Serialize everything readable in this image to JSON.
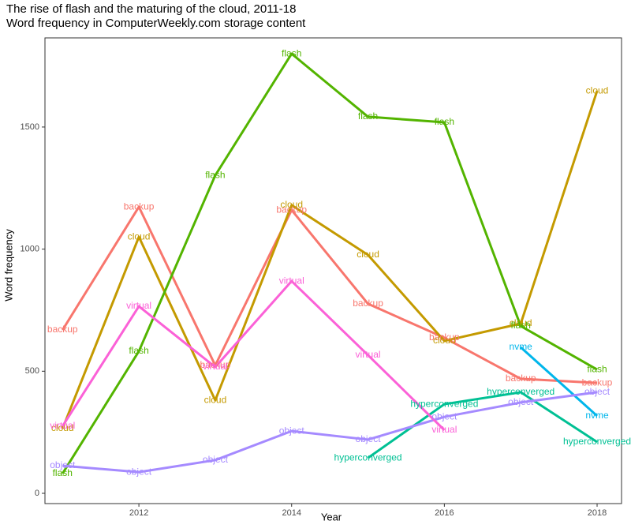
{
  "chart_data": {
    "type": "line",
    "title": "The rise of flash and the maturing of the cloud, 2011-18",
    "subtitle": "Word frequency in ComputerWeekly.com storage content",
    "x_label": "Year",
    "y_label": "Word frequency",
    "x": [
      2011,
      2012,
      2013,
      2014,
      2015,
      2016,
      2017,
      2018
    ],
    "series": [
      {
        "name": "backup",
        "color": "#F8766D",
        "values": [
          669,
          1173,
          524,
          1160,
          776,
          637,
          469,
          452
        ]
      },
      {
        "name": "cloud",
        "color": "#C49A00",
        "values": [
          265,
          1050,
          381,
          1180,
          976,
          624,
          695,
          1648
        ]
      },
      {
        "name": "flash",
        "color": "#53B400",
        "values": [
          81,
          582,
          1302,
          1800,
          1542,
          1519,
          685,
          507
        ]
      },
      {
        "name": "hyperconverged",
        "color": "#00C094",
        "values": [
          null,
          null,
          null,
          null,
          145,
          365,
          414,
          210
        ]
      },
      {
        "name": "nvme",
        "color": "#00B6EB",
        "values": [
          null,
          null,
          null,
          null,
          null,
          null,
          598,
          317
        ]
      },
      {
        "name": "object",
        "color": "#A58AFF",
        "values": [
          113,
          87,
          136,
          255,
          220,
          313,
          372,
          414
        ]
      },
      {
        "name": "virtual",
        "color": "#FB61D7",
        "values": [
          275,
          766,
          517,
          869,
          566,
          259,
          null,
          null
        ]
      }
    ],
    "xlim": [
      2010.77,
      2018.32
    ],
    "xticks": [
      2012,
      2014,
      2016,
      2018
    ],
    "ylim": [
      -42,
      1865
    ],
    "yticks": [
      0,
      500,
      1000,
      1500
    ]
  }
}
